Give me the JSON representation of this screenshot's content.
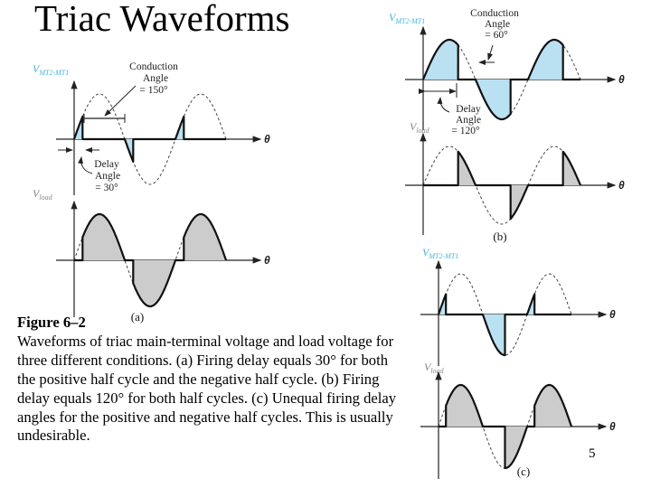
{
  "title": "Triac Waveforms",
  "caption": {
    "heading": "Figure 6–2",
    "body": "Waveforms of triac main-terminal voltage and load voltage for three different conditions. (a) Firing delay equals 30° for both the positive half cycle and the negative half cycle. (b) Firing delay equals 120° for both half cycles. (c) Unequal firing delay angles for the positive and negative half cycles. This is usually undesirable."
  },
  "page_number": "5",
  "colors": {
    "triac_fill": "#b9e1f2",
    "load_fill": "#cccccc",
    "label_blue": "#3fb6dc",
    "label_grey": "#888888"
  },
  "labels": {
    "v": "V",
    "mt_sub": "MT2-MT1",
    "load_sub": "load",
    "theta": "θ"
  },
  "panels": [
    {
      "id": "a",
      "label": "(a)",
      "delay_positive_deg": 30,
      "delay_negative_deg": 30,
      "conduction": [
        "Conduction",
        "Angle",
        "= 150°"
      ],
      "delay": [
        "Delay",
        "Angle",
        "= 30°"
      ]
    },
    {
      "id": "b",
      "label": "(b)",
      "delay_positive_deg": 120,
      "delay_negative_deg": 120,
      "conduction": [
        "Conduction",
        "Angle",
        "= 60°"
      ],
      "delay": [
        "Delay",
        "Angle",
        "= 120°"
      ]
    },
    {
      "id": "c",
      "label": "(c)",
      "delay_positive_deg": 30,
      "delay_negative_deg": 90
    }
  ]
}
